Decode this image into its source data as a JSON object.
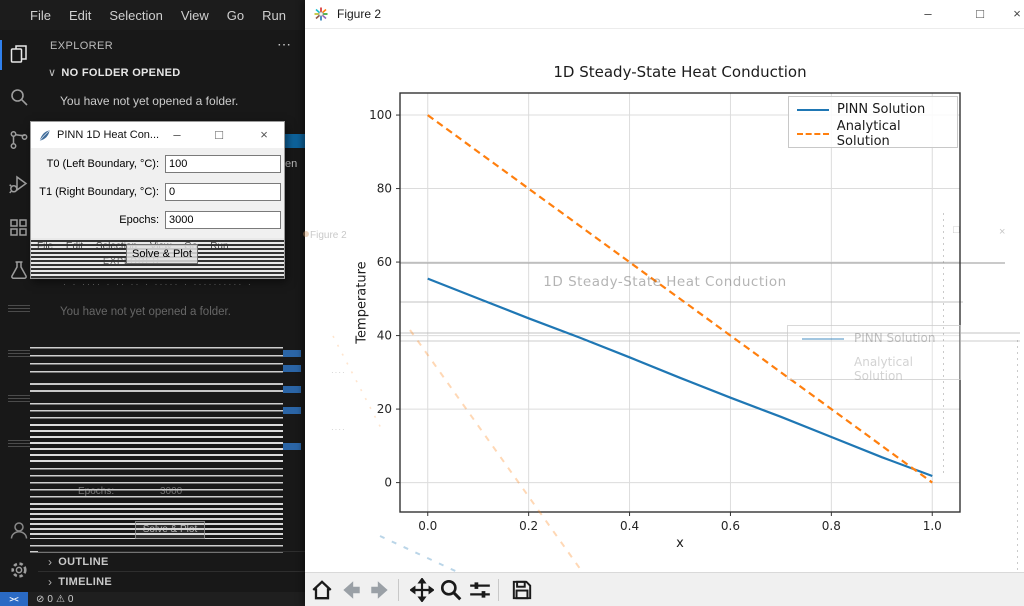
{
  "vscode": {
    "menu_items": [
      "File",
      "Edit",
      "Selection",
      "View",
      "Go",
      "Run"
    ],
    "menu_overflow": "⋯",
    "explorer": {
      "title": "EXPLORER",
      "actions": "⋯",
      "section_chevron": "∨",
      "section_label": "NO FOLDER OPENED",
      "empty_message": "You have not yet opened a folder.",
      "open_button_remnant": "en",
      "outline_chevron": "›",
      "outline_label": "OUTLINE",
      "timeline_chevron": "›",
      "timeline_label": "TIMELINE"
    },
    "statusbar": {
      "remote_icon": "><",
      "errors_icon": "⊘",
      "errors_count": "0",
      "warnings_icon": "⚠",
      "warnings_count": "0"
    },
    "ghost": {
      "dots_echo": "· · ···· · ·· ·· · ····· · ·········· ·",
      "message_echo": "You have not yet opened a folder.",
      "epochs_label_echo": "Epochs:",
      "epochs_value_echo": "3000",
      "button_echo": "Solve & Plot"
    }
  },
  "dialog": {
    "title": "PINN 1D Heat Con...",
    "controls": {
      "minimize": "–",
      "maximize": "□",
      "close": "×"
    },
    "fields": [
      {
        "label": "T0 (Left Boundary, °C):",
        "value": "100"
      },
      {
        "label": "T1 (Right Boundary, °C):",
        "value": "0"
      },
      {
        "label": "Epochs:",
        "value": "3000"
      }
    ],
    "button_label": "Solve & Plot",
    "stripes_menu_echo": "File  Edit  Selection  View  Go  Run",
    "stripes_explorer_echo": "EXPLORER"
  },
  "figure": {
    "window_title": "Figure 2",
    "controls": {
      "minimize": "–",
      "maximize": "□",
      "close": "×"
    },
    "ghost_window_title_echo": "Figure 2",
    "ghost_maximize_echo": "□",
    "ghost_close_echo": "×",
    "toolbar_icons": [
      "home",
      "back",
      "forward",
      "pan",
      "zoom",
      "configure-subplots",
      "save"
    ]
  },
  "chart_data": {
    "type": "line",
    "title": "1D Steady-State Heat Conduction",
    "xlabel": "x",
    "ylabel": "Temperature",
    "xlim": [
      -0.055,
      1.055
    ],
    "ylim": [
      -8,
      106
    ],
    "grid": true,
    "legend_position": "upper right",
    "xticks": [
      0,
      0.2,
      0.4,
      0.6,
      0.8,
      1.0
    ],
    "xtick_labels": [
      "0.0",
      "0.2",
      "0.4",
      "0.6",
      "0.8",
      "1.0"
    ],
    "yticks": [
      0,
      20,
      40,
      60,
      80,
      100
    ],
    "ytick_labels": [
      "0",
      "20",
      "40",
      "60",
      "80",
      "100"
    ],
    "series": [
      {
        "name": "PINN Solution",
        "color": "#1f77b4",
        "style": "solid",
        "x": [
          0,
          0.1,
          0.2,
          0.3,
          0.4,
          0.5,
          0.6,
          0.7,
          0.8,
          0.9,
          1.0
        ],
        "y": [
          55.5,
          50.1,
          44.7,
          39.5,
          34.1,
          28.5,
          23.1,
          17.9,
          12.4,
          6.9,
          1.8
        ]
      },
      {
        "name": "Analytical Solution",
        "color": "#ff7f0e",
        "style": "dashed",
        "x": [
          0,
          0.2,
          0.4,
          0.6,
          0.8,
          1.0
        ],
        "y": [
          100,
          80,
          60,
          40,
          20,
          0
        ]
      }
    ],
    "ghost": {
      "title_echo": "1D Steady-State Heat Conduction",
      "legend_echo": [
        "PINN Solution",
        "Analytical Solution"
      ]
    }
  }
}
